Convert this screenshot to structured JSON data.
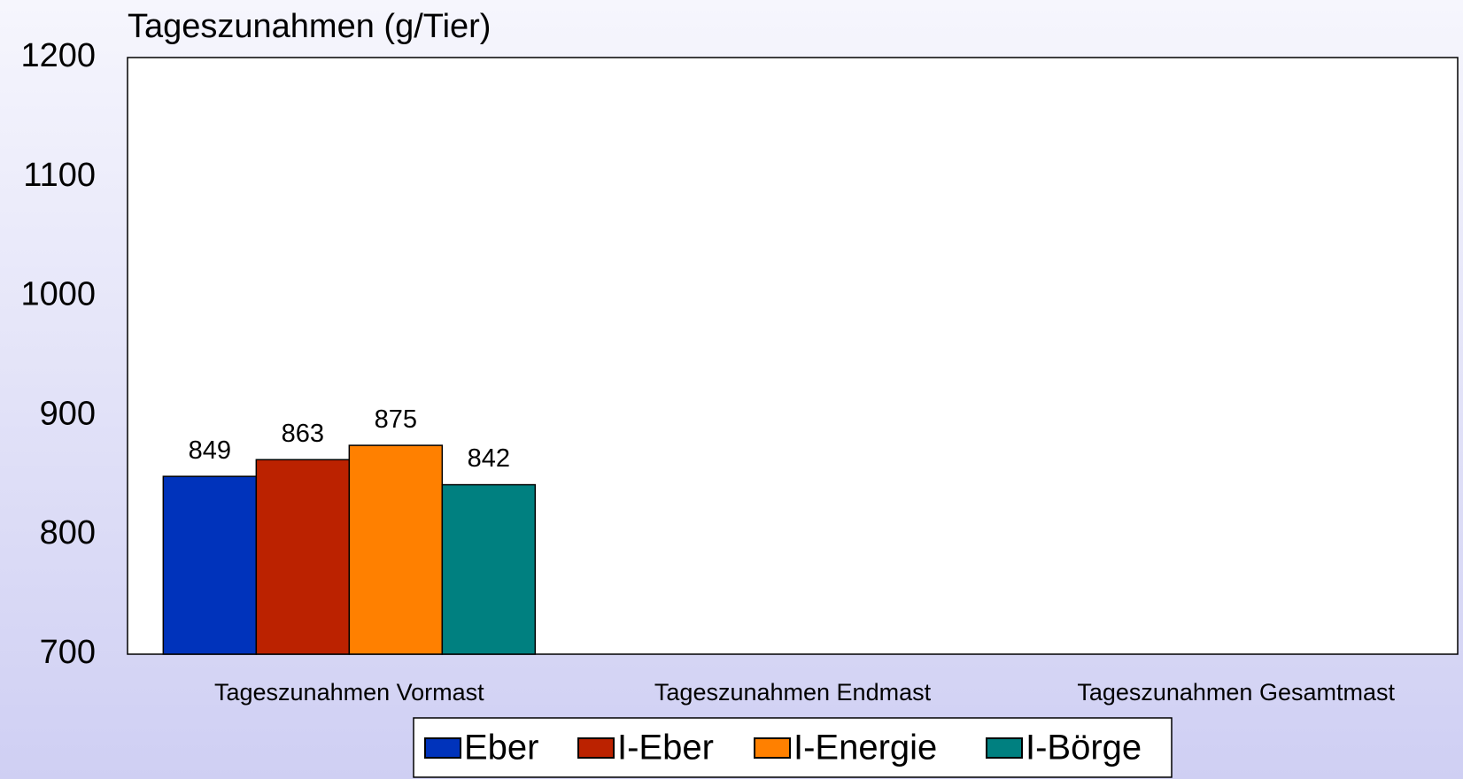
{
  "chart_data": {
    "type": "bar",
    "title": "Tageszunahmen (g/Tier)",
    "categories": [
      "Tageszunahmen Vormast",
      "Tageszunahmen Endmast",
      "Tageszunahmen Gesamtmast"
    ],
    "series": [
      {
        "name": "Eber",
        "color": "#0033bb",
        "values": [
          849,
          null,
          null
        ]
      },
      {
        "name": "I-Eber",
        "color": "#bb2200",
        "values": [
          863,
          null,
          null
        ]
      },
      {
        "name": "I-Energie",
        "color": "#ff8000",
        "values": [
          875,
          null,
          null
        ]
      },
      {
        "name": "I-Börge",
        "color": "#008080",
        "values": [
          842,
          null,
          null
        ]
      }
    ],
    "ylim": [
      700,
      1200
    ],
    "yticks": [
      700,
      800,
      900,
      1000,
      1100,
      1200
    ],
    "grid": false,
    "legend": "bottom"
  }
}
